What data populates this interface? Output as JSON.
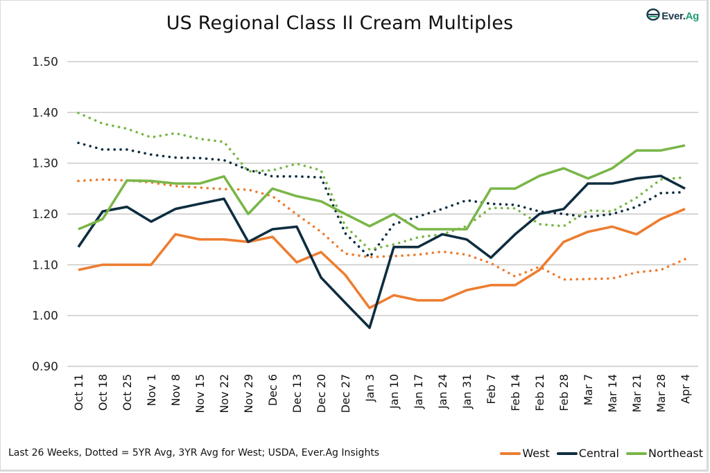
{
  "header": {
    "title": "US Regional Class II Cream Multiples",
    "logo_text_main": "Ever.",
    "logo_text_accent": "Ag",
    "logo_icon": "ever-ag-leaf-icon"
  },
  "footer": {
    "note": "Last 26 Weeks, Dotted = 5YR Avg, 3YR Avg for West; USDA, Ever.Ag Insights"
  },
  "legend": [
    {
      "name": "West",
      "color": "#ED7D31"
    },
    {
      "name": "Central",
      "color": "#0E2D3F"
    },
    {
      "name": "Northeast",
      "color": "#7AB648"
    }
  ],
  "chart_data": {
    "type": "line",
    "title": "US Regional Class II Cream Multiples",
    "xlabel": "",
    "ylabel": "",
    "ylim": [
      0.9,
      1.5
    ],
    "yticks": [
      "0.90",
      "1.00",
      "1.10",
      "1.20",
      "1.30",
      "1.40",
      "1.50"
    ],
    "grid": true,
    "legend_position": "bottom-right",
    "categories": [
      "Oct 11",
      "Oct 18",
      "Oct 25",
      "Nov 1",
      "Nov 8",
      "Nov 15",
      "Nov 22",
      "Nov 29",
      "Dec 6",
      "Dec 13",
      "Dec 20",
      "Dec 27",
      "Jan 3",
      "Jan 10",
      "Jan 17",
      "Jan 24",
      "Jan 31",
      "Feb 7",
      "Feb 14",
      "Feb 21",
      "Feb 28",
      "Mar 7",
      "Mar 14",
      "Mar 21",
      "Mar 28",
      "Apr 4"
    ],
    "series": [
      {
        "name": "West",
        "style": "solid",
        "color": "#ED7D31",
        "values": [
          1.09,
          1.1,
          1.1,
          1.1,
          1.16,
          1.15,
          1.15,
          1.145,
          1.155,
          1.105,
          1.125,
          1.08,
          1.015,
          1.04,
          1.03,
          1.03,
          1.05,
          1.06,
          1.06,
          1.09,
          1.145,
          1.165,
          1.175,
          1.16,
          1.19,
          1.21
        ]
      },
      {
        "name": "Central",
        "style": "solid",
        "color": "#0E2D3F",
        "values": [
          1.135,
          1.205,
          1.214,
          1.185,
          1.21,
          1.22,
          1.23,
          1.145,
          1.17,
          1.175,
          1.075,
          1.025,
          0.976,
          1.135,
          1.135,
          1.16,
          1.15,
          1.114,
          1.16,
          1.2,
          1.21,
          1.26,
          1.26,
          1.27,
          1.275,
          1.25
        ]
      },
      {
        "name": "Northeast",
        "style": "solid",
        "color": "#7AB648",
        "values": [
          1.17,
          1.19,
          1.266,
          1.265,
          1.26,
          1.26,
          1.274,
          1.2,
          1.25,
          1.235,
          1.225,
          1.2,
          1.176,
          1.2,
          1.17,
          1.17,
          1.17,
          1.25,
          1.25,
          1.275,
          1.29,
          1.27,
          1.29,
          1.325,
          1.325,
          1.335
        ]
      },
      {
        "name": "West 3YR Avg",
        "style": "dotted",
        "color": "#ED7D31",
        "values": [
          1.265,
          1.268,
          1.266,
          1.262,
          1.255,
          1.252,
          1.249,
          1.248,
          1.235,
          1.199,
          1.165,
          1.122,
          1.115,
          1.117,
          1.12,
          1.126,
          1.12,
          1.103,
          1.077,
          1.096,
          1.071,
          1.072,
          1.073,
          1.085,
          1.09,
          1.111
        ]
      },
      {
        "name": "Central 5YR Avg",
        "style": "dotted",
        "color": "#0E2D3F",
        "values": [
          1.34,
          1.327,
          1.327,
          1.317,
          1.311,
          1.31,
          1.306,
          1.287,
          1.274,
          1.274,
          1.272,
          1.162,
          1.115,
          1.18,
          1.195,
          1.21,
          1.227,
          1.22,
          1.218,
          1.205,
          1.2,
          1.194,
          1.2,
          1.214,
          1.241,
          1.243
        ]
      },
      {
        "name": "Northeast 5YR Avg",
        "style": "dotted",
        "color": "#7AB648",
        "values": [
          1.399,
          1.378,
          1.368,
          1.351,
          1.359,
          1.348,
          1.342,
          1.284,
          1.286,
          1.299,
          1.286,
          1.176,
          1.13,
          1.14,
          1.154,
          1.16,
          1.176,
          1.212,
          1.211,
          1.18,
          1.176,
          1.207,
          1.205,
          1.232,
          1.268,
          1.272
        ]
      }
    ]
  }
}
